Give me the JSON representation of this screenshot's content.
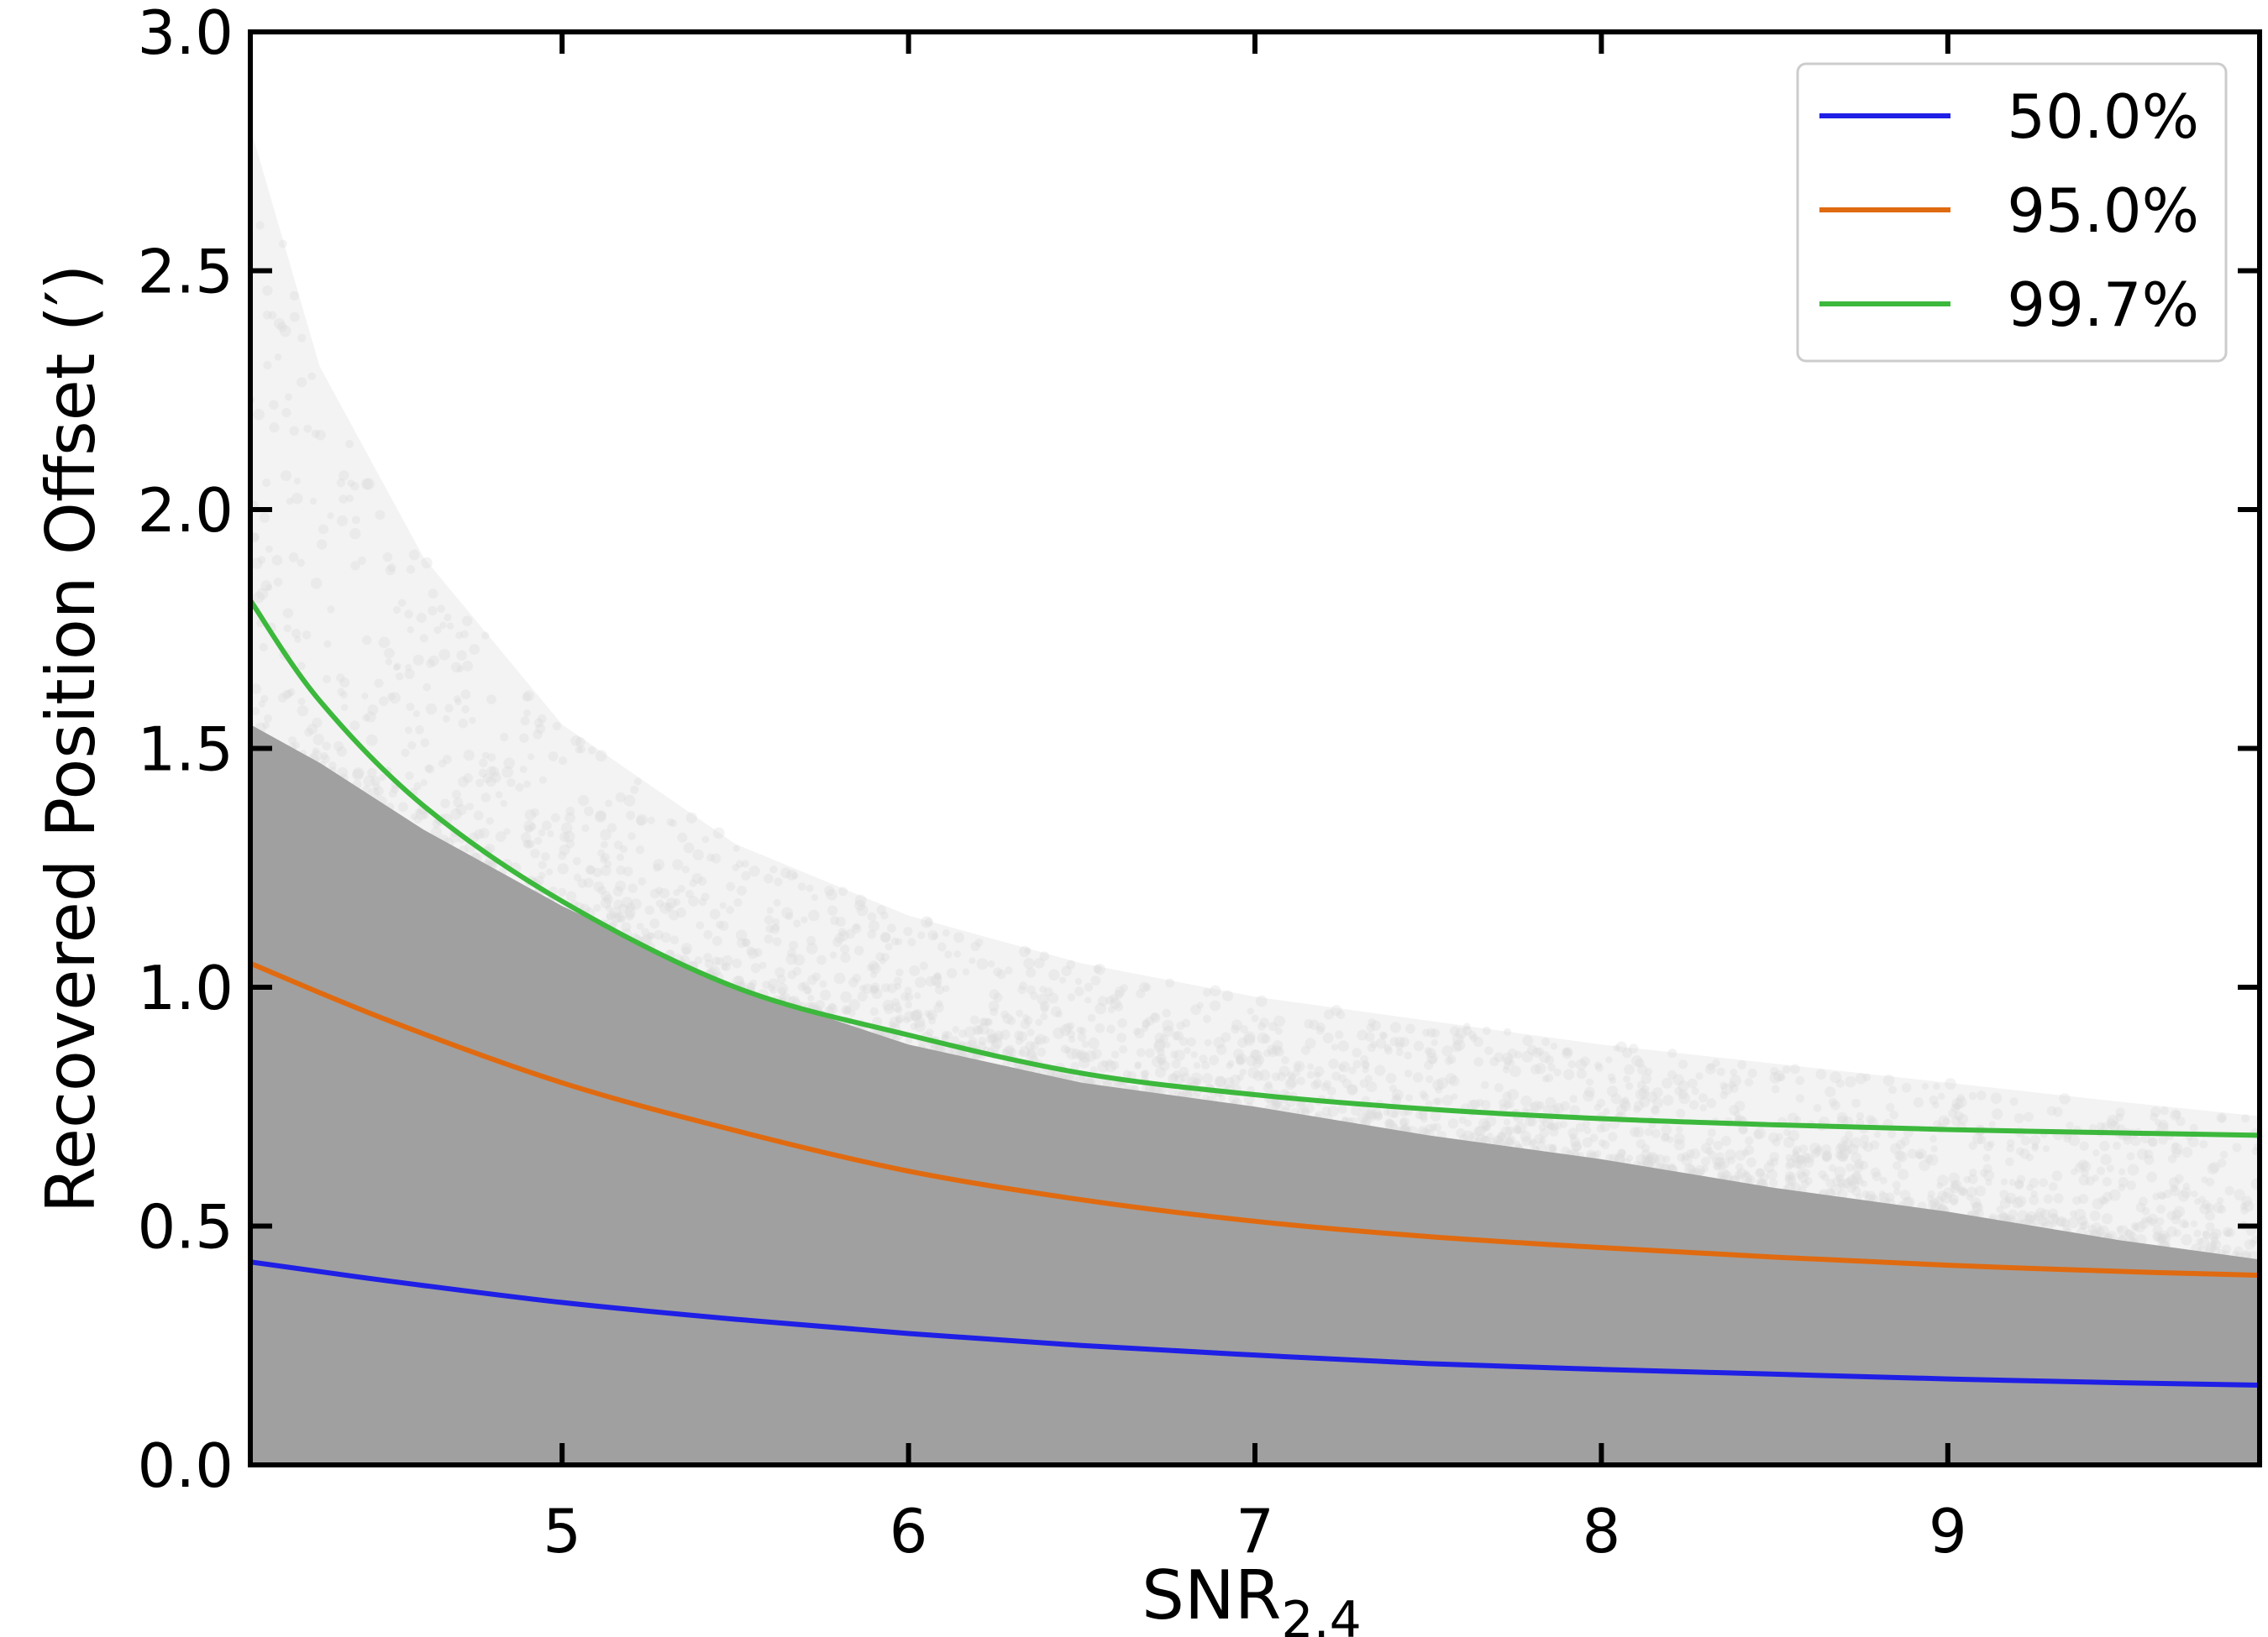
{
  "chart_data": {
    "type": "scatter",
    "xlabel": "SNR",
    "xlabel_subscript": "2.4",
    "ylabel": "Recovered Position Offset (′)",
    "xlim": [
      4.1,
      9.9
    ],
    "ylim": [
      0.0,
      3.0
    ],
    "x_ticks": [
      5,
      6,
      7,
      8,
      9
    ],
    "x_tick_labels": [
      "5",
      "6",
      "7",
      "8",
      "9"
    ],
    "y_ticks": [
      0.0,
      0.5,
      1.0,
      1.5,
      2.0,
      2.5,
      3.0
    ],
    "y_tick_labels": [
      "0.0",
      "0.5",
      "1.0",
      "1.5",
      "2.0",
      "2.5",
      "3.0"
    ],
    "grid": false,
    "legend_position": "top-right",
    "scatter_cloud": {
      "color": "#a0a0a0",
      "dense_upper_edge": {
        "x": [
          4.1,
          4.3,
          4.6,
          5.0,
          5.5,
          6.0,
          6.5,
          7.0,
          7.5,
          8.0,
          8.5,
          9.0,
          9.5,
          9.9
        ],
        "y": [
          1.55,
          1.47,
          1.33,
          1.17,
          1.0,
          0.88,
          0.8,
          0.75,
          0.69,
          0.64,
          0.58,
          0.53,
          0.47,
          0.43
        ]
      },
      "sparse_upper_edge": {
        "x": [
          4.1,
          4.3,
          4.6,
          5.0,
          5.5,
          6.0,
          6.5,
          7.0,
          7.5,
          8.0,
          8.5,
          9.0,
          9.5,
          9.9
        ],
        "y": [
          2.8,
          2.3,
          1.9,
          1.55,
          1.3,
          1.15,
          1.05,
          0.98,
          0.93,
          0.88,
          0.84,
          0.8,
          0.76,
          0.73
        ]
      }
    },
    "series": [
      {
        "name": "50.0%",
        "color": "#1f1fe6",
        "x": [
          4.1,
          4.5,
          5.0,
          5.5,
          6.0,
          6.5,
          7.0,
          7.5,
          8.0,
          8.5,
          9.0,
          9.5,
          9.9
        ],
        "y": [
          0.425,
          0.385,
          0.34,
          0.305,
          0.275,
          0.25,
          0.23,
          0.212,
          0.2,
          0.19,
          0.18,
          0.172,
          0.167
        ]
      },
      {
        "name": "95.0%",
        "color": "#e06a10",
        "x": [
          4.1,
          4.5,
          5.0,
          5.5,
          6.0,
          6.5,
          7.0,
          7.5,
          8.0,
          8.5,
          9.0,
          9.5,
          9.9
        ],
        "y": [
          1.05,
          0.93,
          0.8,
          0.7,
          0.615,
          0.555,
          0.51,
          0.478,
          0.455,
          0.435,
          0.418,
          0.405,
          0.397
        ]
      },
      {
        "name": "99.7%",
        "color": "#3cb83c",
        "x": [
          4.1,
          4.3,
          4.6,
          5.0,
          5.5,
          6.0,
          6.5,
          7.0,
          7.5,
          8.0,
          8.5,
          9.0,
          9.5,
          9.9
        ],
        "y": [
          1.81,
          1.6,
          1.38,
          1.18,
          1.0,
          0.9,
          0.82,
          0.775,
          0.745,
          0.725,
          0.712,
          0.702,
          0.695,
          0.69
        ]
      }
    ]
  }
}
